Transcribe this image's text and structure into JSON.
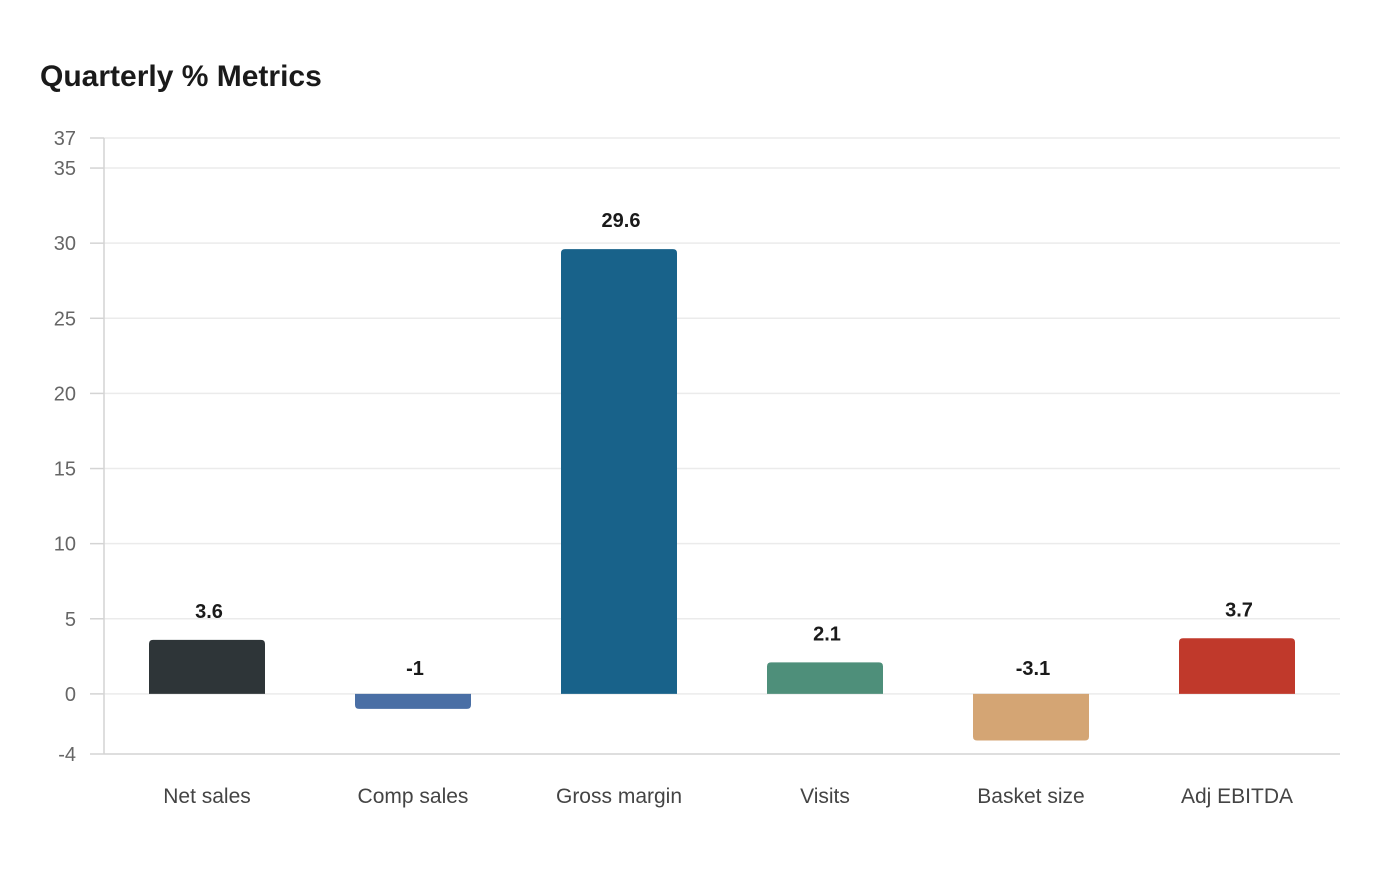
{
  "chart_data": {
    "type": "bar",
    "title": "Quarterly % Metrics",
    "xlabel": "",
    "ylabel": "",
    "categories": [
      "Net sales",
      "Comp sales",
      "Gross margin",
      "Visits",
      "Basket size",
      "Adj EBITDA"
    ],
    "values": [
      3.6,
      -1,
      29.6,
      2.1,
      -3.1,
      3.7
    ],
    "value_labels": [
      "3.6",
      "-1",
      "29.6",
      "2.1",
      "-3.1",
      "3.7"
    ],
    "colors": [
      "#2e3538",
      "#4a6fa5",
      "#18628a",
      "#4e8f7a",
      "#d4a574",
      "#c0392b"
    ],
    "ylim": [
      -4,
      37
    ],
    "yticks": [
      -4,
      0,
      5,
      10,
      15,
      20,
      25,
      30,
      35,
      37
    ],
    "grid": true,
    "legend": "none"
  }
}
